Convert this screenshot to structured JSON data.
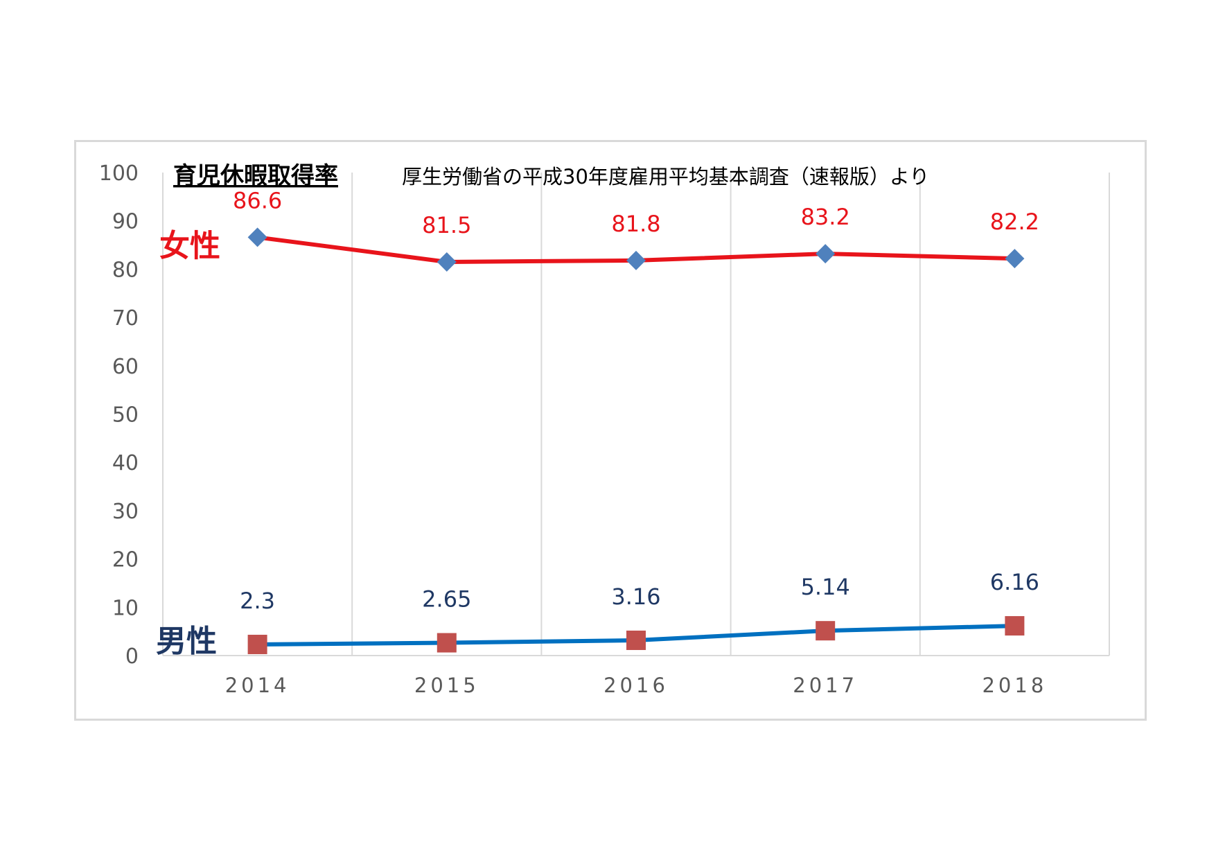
{
  "chart_data": {
    "type": "line",
    "title": "育児休暇取得率",
    "subtitle": "厚生労働省の平成30年度雇用平均基本調査（速報版）より",
    "categories": [
      "2014",
      "2015",
      "2016",
      "2017",
      "2018"
    ],
    "ylim": [
      0,
      100
    ],
    "y_ticks": [
      "0",
      "10",
      "20",
      "30",
      "40",
      "50",
      "60",
      "70",
      "80",
      "90",
      "100"
    ],
    "grid": "vertical",
    "series": [
      {
        "name": "女性",
        "values": [
          86.6,
          81.5,
          81.8,
          83.2,
          82.2
        ],
        "labels": [
          "86.6",
          "81.5",
          "81.8",
          "83.2",
          "82.2"
        ],
        "line_color": "#e8141b",
        "marker": "diamond",
        "marker_color": "#4f81bd",
        "label_color": "#e8141b"
      },
      {
        "name": "男性",
        "values": [
          2.3,
          2.65,
          3.16,
          5.14,
          6.16
        ],
        "labels": [
          "2.3",
          "2.65",
          "3.16",
          "5.14",
          "6.16"
        ],
        "line_color": "#0070c0",
        "marker": "square",
        "marker_color": "#c0504d",
        "label_color": "#1f3864"
      }
    ]
  }
}
